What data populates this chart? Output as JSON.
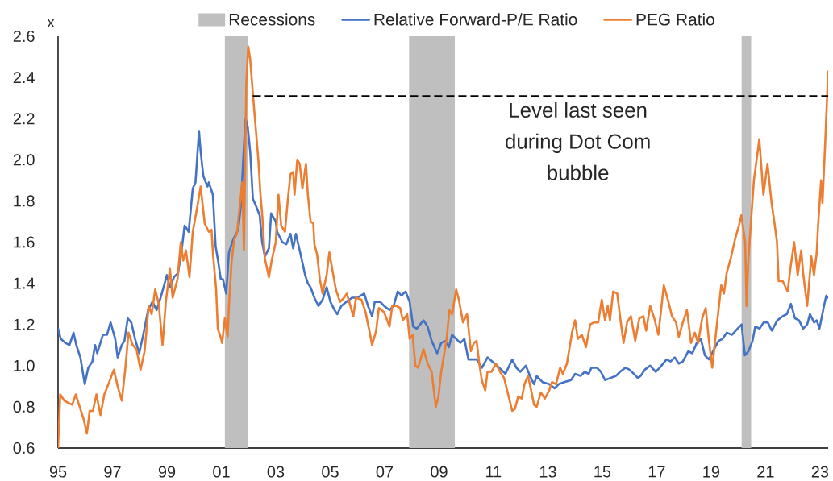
{
  "chart_data": {
    "type": "line",
    "ylabel": "x",
    "xlim": [
      1995,
      2023.3
    ],
    "xticks": [
      {
        "value": 1995,
        "label": "95"
      },
      {
        "value": 1997,
        "label": "97"
      },
      {
        "value": 1999,
        "label": "99"
      },
      {
        "value": 2001,
        "label": "01"
      },
      {
        "value": 2003,
        "label": "03"
      },
      {
        "value": 2005,
        "label": "05"
      },
      {
        "value": 2007,
        "label": "07"
      },
      {
        "value": 2009,
        "label": "09"
      },
      {
        "value": 2011,
        "label": "11"
      },
      {
        "value": 2013,
        "label": "13"
      },
      {
        "value": 2015,
        "label": "15"
      },
      {
        "value": 2017,
        "label": "17"
      },
      {
        "value": 2019,
        "label": "19"
      },
      {
        "value": 2021,
        "label": "21"
      },
      {
        "value": 2023,
        "label": "23"
      }
    ],
    "ylim": [
      0.6,
      2.6
    ],
    "yticks": [
      0.6,
      0.8,
      {
        "value": 1,
        "label": "1.0"
      },
      1.2,
      1.4,
      1.6,
      1.8,
      {
        "value": 2,
        "label": "2.0"
      },
      2.2,
      2.4,
      2.6
    ],
    "legend": "top",
    "bands": [
      {
        "axis": "x",
        "from": 2001.13,
        "to": 2001.97,
        "label": "Recessions",
        "color": "#bfbfbf"
      },
      {
        "axis": "x",
        "from": 2007.9,
        "to": 2009.58,
        "color": "#bfbfbf"
      },
      {
        "axis": "x",
        "from": 2020.12,
        "to": 2020.47,
        "color": "#bfbfbf"
      }
    ],
    "series": [
      {
        "name": "Relative Forward-P/E Ratio",
        "color": "#4472c4",
        "x": [
          1995.0,
          1995.1,
          1995.27,
          1995.42,
          1995.57,
          1995.67,
          1995.82,
          1995.98,
          1996.11,
          1996.26,
          1996.36,
          1996.44,
          1996.65,
          1996.8,
          1996.93,
          1997.1,
          1997.19,
          1997.34,
          1997.44,
          1997.56,
          1997.69,
          1997.83,
          1997.98,
          1998.13,
          1998.31,
          1998.47,
          1998.62,
          1998.77,
          1999.0,
          1999.11,
          1999.26,
          1999.41,
          1999.55,
          1999.65,
          1999.7,
          1999.8,
          1999.95,
          2000.05,
          2000.18,
          2000.24,
          2000.34,
          2000.49,
          2000.54,
          2000.69,
          2000.79,
          2000.88,
          2000.98,
          2001.06,
          2001.18,
          2001.28,
          2001.43,
          2001.62,
          2001.72,
          2001.82,
          2001.89,
          2001.97,
          2002.06,
          2002.16,
          2002.26,
          2002.41,
          2002.5,
          2002.6,
          2002.75,
          2002.83,
          2003.0,
          2003.05,
          2003.24,
          2003.39,
          2003.54,
          2003.64,
          2003.74,
          2003.88,
          2003.98,
          2004.08,
          2004.18,
          2004.28,
          2004.42,
          2004.57,
          2004.72,
          2004.87,
          2005.01,
          2005.16,
          2005.26,
          2005.41,
          2005.6,
          2005.8,
          2006.0,
          2006.25,
          2006.39,
          2006.54,
          2006.64,
          2006.84,
          2006.98,
          2007.18,
          2007.33,
          2007.48,
          2007.62,
          2007.77,
          2007.92,
          2008.05,
          2008.18,
          2008.43,
          2008.58,
          2008.73,
          2008.93,
          2009.08,
          2009.23,
          2009.36,
          2009.48,
          2009.63,
          2009.78,
          2009.93,
          2010.08,
          2010.23,
          2010.38,
          2010.58,
          2010.78,
          2011.04,
          2011.29,
          2011.44,
          2011.69,
          2011.84,
          2011.99,
          2012.19,
          2012.34,
          2012.49,
          2012.59,
          2012.8,
          2013.05,
          2013.25,
          2013.4,
          2013.6,
          2013.85,
          2014.0,
          2014.2,
          2014.35,
          2014.5,
          2014.6,
          2014.8,
          2014.95,
          2015.1,
          2015.3,
          2015.5,
          2015.65,
          2015.85,
          2016.0,
          2016.16,
          2016.31,
          2016.41,
          2016.56,
          2016.76,
          2016.96,
          2017.11,
          2017.36,
          2017.51,
          2017.66,
          2017.81,
          2017.96,
          2018.16,
          2018.31,
          2018.47,
          2018.62,
          2018.77,
          2018.92,
          2019.07,
          2019.27,
          2019.42,
          2019.57,
          2019.77,
          2019.97,
          2020.12,
          2020.24,
          2020.37,
          2020.52,
          2020.62,
          2020.78,
          2020.93,
          2021.08,
          2021.23,
          2021.43,
          2021.63,
          2021.78,
          2021.93,
          2022.08,
          2022.23,
          2022.38,
          2022.53,
          2022.63,
          2022.78,
          2022.88,
          2022.98,
          2023.13,
          2023.23,
          2023.28
        ],
        "values": [
          1.18,
          1.13,
          1.11,
          1.1,
          1.16,
          1.1,
          1.04,
          0.91,
          0.99,
          1.02,
          1.1,
          1.06,
          1.15,
          1.15,
          1.21,
          1.13,
          1.04,
          1.1,
          1.12,
          1.23,
          1.21,
          1.13,
          1.06,
          1.15,
          1.27,
          1.31,
          1.27,
          1.33,
          1.44,
          1.38,
          1.43,
          1.45,
          1.57,
          1.68,
          1.67,
          1.65,
          1.86,
          1.89,
          2.14,
          2.04,
          1.92,
          1.87,
          1.89,
          1.83,
          1.58,
          1.51,
          1.42,
          1.42,
          1.35,
          1.55,
          1.61,
          1.66,
          1.78,
          2.04,
          2.2,
          2.16,
          2.04,
          1.81,
          1.78,
          1.73,
          1.6,
          1.53,
          1.57,
          1.74,
          1.7,
          1.65,
          1.6,
          1.59,
          1.64,
          1.57,
          1.64,
          1.56,
          1.5,
          1.44,
          1.4,
          1.38,
          1.33,
          1.29,
          1.32,
          1.38,
          1.31,
          1.27,
          1.25,
          1.29,
          1.31,
          1.33,
          1.33,
          1.35,
          1.29,
          1.24,
          1.31,
          1.31,
          1.29,
          1.27,
          1.29,
          1.36,
          1.34,
          1.36,
          1.31,
          1.19,
          1.18,
          1.22,
          1.19,
          1.12,
          1.06,
          1.11,
          1.12,
          1.09,
          1.15,
          1.13,
          1.11,
          1.13,
          1.03,
          1.03,
          1.03,
          0.99,
          1.04,
          1.01,
          0.98,
          0.96,
          1.03,
          0.99,
          0.97,
          1.0,
          0.95,
          0.91,
          0.95,
          0.92,
          0.91,
          0.89,
          0.91,
          0.92,
          0.93,
          0.96,
          0.95,
          0.97,
          0.96,
          0.99,
          0.99,
          0.97,
          0.93,
          0.94,
          0.95,
          0.97,
          0.99,
          0.98,
          0.96,
          0.94,
          0.95,
          0.98,
          1.0,
          0.97,
          0.99,
          1.03,
          1.02,
          1.04,
          1.01,
          1.02,
          1.07,
          1.06,
          1.11,
          1.13,
          1.05,
          1.03,
          1.07,
          1.12,
          1.13,
          1.16,
          1.15,
          1.18,
          1.2,
          1.05,
          1.07,
          1.12,
          1.19,
          1.18,
          1.21,
          1.21,
          1.17,
          1.22,
          1.24,
          1.25,
          1.3,
          1.23,
          1.22,
          1.18,
          1.2,
          1.25,
          1.21,
          1.22,
          1.18,
          1.28,
          1.34,
          1.33
        ]
      },
      {
        "name": "PEG Ratio",
        "color": "#ed7d31",
        "x": [
          1995.0,
          1995.08,
          1995.23,
          1995.37,
          1995.52,
          1995.65,
          1995.77,
          1995.94,
          1996.06,
          1996.16,
          1996.28,
          1996.41,
          1996.56,
          1996.7,
          1996.85,
          1997.05,
          1997.19,
          1997.34,
          1997.46,
          1997.59,
          1997.74,
          1997.88,
          1998.03,
          1998.18,
          1998.33,
          1998.44,
          1998.57,
          1998.7,
          1998.84,
          1998.96,
          1999.11,
          1999.21,
          1999.39,
          1999.51,
          1999.6,
          1999.7,
          1999.83,
          1999.95,
          2000.1,
          2000.24,
          2000.39,
          2000.54,
          2000.64,
          2000.69,
          2000.81,
          2000.87,
          2000.97,
          2001.03,
          2001.13,
          2001.23,
          2001.28,
          2001.38,
          2001.47,
          2001.57,
          2001.77,
          2001.83,
          2001.92,
          2001.99,
          2002.06,
          2002.16,
          2002.26,
          2002.36,
          2002.44,
          2002.51,
          2002.6,
          2002.75,
          2002.85,
          2003.0,
          2003.1,
          2003.2,
          2003.34,
          2003.44,
          2003.54,
          2003.64,
          2003.69,
          2003.79,
          2003.88,
          2003.98,
          2004.11,
          2004.18,
          2004.28,
          2004.38,
          2004.42,
          2004.52,
          2004.62,
          2004.72,
          2004.87,
          2004.97,
          2005.06,
          2005.21,
          2005.36,
          2005.51,
          2005.61,
          2005.7,
          2005.85,
          2005.95,
          2006.15,
          2006.3,
          2006.44,
          2006.54,
          2006.69,
          2006.79,
          2006.98,
          2007.18,
          2007.28,
          2007.43,
          2007.57,
          2007.67,
          2007.83,
          2007.92,
          2008.03,
          2008.13,
          2008.23,
          2008.43,
          2008.58,
          2008.73,
          2008.88,
          2008.98,
          2009.08,
          2009.18,
          2009.28,
          2009.38,
          2009.48,
          2009.63,
          2009.73,
          2009.88,
          2010.03,
          2010.17,
          2010.28,
          2010.38,
          2010.48,
          2010.57,
          2010.7,
          2010.78,
          2010.93,
          2011.09,
          2011.24,
          2011.39,
          2011.54,
          2011.69,
          2011.79,
          2011.91,
          2012.04,
          2012.14,
          2012.27,
          2012.37,
          2012.49,
          2012.59,
          2012.74,
          2012.89,
          2013.05,
          2013.15,
          2013.3,
          2013.45,
          2013.55,
          2013.7,
          2013.8,
          2013.9,
          2014.0,
          2014.1,
          2014.25,
          2014.4,
          2014.55,
          2014.7,
          2014.85,
          2014.98,
          2015.1,
          2015.2,
          2015.28,
          2015.4,
          2015.55,
          2015.65,
          2015.78,
          2015.91,
          2016.05,
          2016.21,
          2016.36,
          2016.51,
          2016.61,
          2016.76,
          2016.91,
          2017.06,
          2017.26,
          2017.41,
          2017.56,
          2017.71,
          2017.81,
          2017.96,
          2018.11,
          2018.26,
          2018.4,
          2018.52,
          2018.67,
          2018.8,
          2018.92,
          2019.04,
          2019.17,
          2019.27,
          2019.37,
          2019.47,
          2019.57,
          2019.72,
          2019.87,
          2020.02,
          2020.11,
          2020.25,
          2020.3,
          2020.37,
          2020.57,
          2020.77,
          2020.92,
          2021.07,
          2021.22,
          2021.32,
          2021.42,
          2021.48,
          2021.63,
          2021.81,
          2021.91,
          2022.05,
          2022.18,
          2022.31,
          2022.38,
          2022.53,
          2022.68,
          2022.78,
          2022.88,
          2022.93,
          2023.04,
          2023.09,
          2023.19,
          2023.3
        ],
        "values": [
          0.6,
          0.86,
          0.83,
          0.82,
          0.81,
          0.86,
          0.81,
          0.74,
          0.67,
          0.78,
          0.78,
          0.86,
          0.76,
          0.86,
          0.91,
          0.98,
          0.9,
          0.83,
          0.97,
          1.16,
          1.1,
          1.08,
          0.98,
          1.07,
          1.29,
          1.25,
          1.37,
          1.3,
          1.1,
          1.31,
          1.47,
          1.33,
          1.42,
          1.6,
          1.51,
          1.56,
          1.43,
          1.65,
          1.76,
          1.87,
          1.69,
          1.65,
          1.66,
          1.55,
          1.37,
          1.18,
          1.14,
          1.11,
          1.23,
          1.14,
          1.29,
          1.51,
          1.61,
          1.64,
          1.89,
          1.56,
          2.38,
          2.55,
          2.49,
          2.32,
          2.16,
          2.0,
          1.83,
          1.72,
          1.52,
          1.43,
          1.51,
          1.6,
          1.83,
          1.68,
          1.65,
          1.8,
          1.93,
          1.94,
          1.83,
          2.0,
          1.98,
          1.86,
          1.98,
          1.83,
          1.7,
          1.69,
          1.59,
          1.54,
          1.42,
          1.35,
          1.44,
          1.55,
          1.48,
          1.37,
          1.31,
          1.33,
          1.35,
          1.31,
          1.24,
          1.33,
          1.32,
          1.26,
          1.17,
          1.1,
          1.17,
          1.28,
          1.26,
          1.19,
          1.29,
          1.29,
          1.28,
          1.22,
          1.25,
          1.13,
          1.15,
          1.0,
          0.99,
          1.08,
          1.01,
          0.97,
          0.8,
          0.85,
          0.97,
          1.05,
          1.13,
          1.27,
          1.25,
          1.37,
          1.32,
          1.21,
          1.25,
          1.07,
          1.11,
          1.12,
          1.01,
          0.93,
          0.88,
          0.97,
          0.97,
          1.01,
          0.97,
          0.94,
          0.86,
          0.78,
          0.79,
          0.85,
          0.84,
          0.91,
          0.95,
          0.89,
          0.81,
          0.8,
          0.87,
          0.84,
          0.88,
          0.92,
          0.91,
          0.99,
          0.96,
          1.01,
          1.09,
          1.17,
          1.22,
          1.13,
          1.15,
          1.09,
          1.2,
          1.21,
          1.21,
          1.32,
          1.22,
          1.29,
          1.22,
          1.36,
          1.35,
          1.24,
          1.11,
          1.21,
          1.24,
          1.12,
          1.23,
          1.24,
          1.17,
          1.29,
          1.23,
          1.15,
          1.39,
          1.32,
          1.24,
          1.21,
          1.14,
          1.21,
          1.27,
          1.11,
          1.16,
          1.11,
          1.23,
          1.28,
          1.12,
          0.99,
          1.15,
          1.27,
          1.39,
          1.35,
          1.45,
          1.52,
          1.61,
          1.68,
          1.73,
          1.6,
          1.29,
          1.52,
          1.9,
          2.1,
          1.83,
          1.98,
          1.79,
          1.7,
          1.6,
          1.41,
          1.41,
          1.36,
          1.47,
          1.6,
          1.44,
          1.56,
          1.45,
          1.29,
          1.53,
          1.44,
          1.55,
          1.68,
          1.9,
          1.79,
          2.08,
          2.43
        ]
      },
      {
        "type": "line",
        "color": "#000000",
        "line_style": "dashed",
        "x": [
          2002.17,
          2023.3
        ],
        "values": [
          2.31,
          2.31
        ]
      }
    ],
    "annotations": [
      "Level last seen during Dot Com bubble"
    ]
  }
}
